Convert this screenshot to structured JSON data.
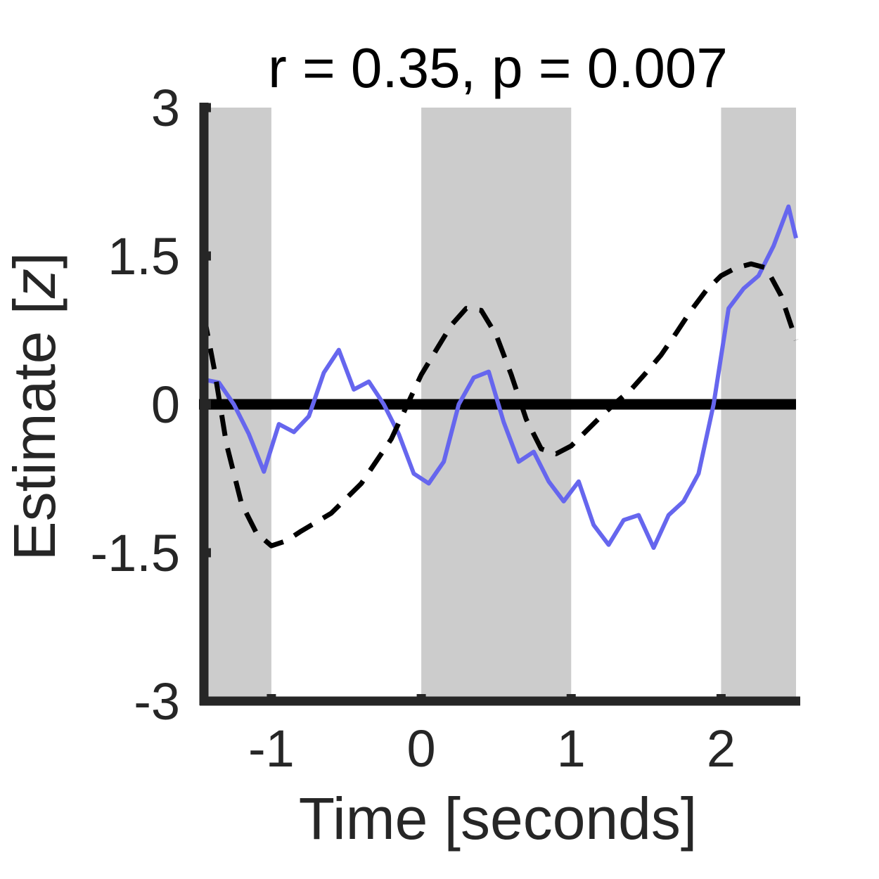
{
  "chart_data": {
    "type": "line",
    "title": "r = 0.35, p = 0.007",
    "xlabel": "Time [seconds]",
    "ylabel_prefix": "Estimate [",
    "ylabel_var": "z",
    "ylabel_suffix": "]",
    "xlim": [
      -1.45,
      2.5
    ],
    "ylim": [
      -3,
      3
    ],
    "xticks": [
      -1,
      0,
      1,
      2
    ],
    "xtick_labels": [
      "-1",
      "0",
      "1",
      "2"
    ],
    "yticks": [
      -3,
      -1.5,
      0,
      1.5,
      3
    ],
    "ytick_labels": [
      "-3",
      "-1.5",
      "0",
      "1.5",
      "3"
    ],
    "shaded_regions": [
      [
        -1.45,
        -1.0
      ],
      [
        0.0,
        1.0
      ],
      [
        2.0,
        2.5
      ]
    ],
    "shade_color": "#cccccc",
    "zero_line": {
      "y": 0,
      "color": "#000000"
    },
    "series": [
      {
        "style": "solid",
        "color": "#6666ee",
        "x": [
          -1.45,
          -1.35,
          -1.25,
          -1.15,
          -1.05,
          -0.95,
          -0.85,
          -0.75,
          -0.65,
          -0.55,
          -0.45,
          -0.35,
          -0.25,
          -0.15,
          -0.05,
          0.05,
          0.15,
          0.25,
          0.35,
          0.45,
          0.55,
          0.65,
          0.75,
          0.85,
          0.95,
          1.05,
          1.15,
          1.25,
          1.35,
          1.45,
          1.55,
          1.65,
          1.75,
          1.85,
          1.95,
          2.05,
          2.15,
          2.25,
          2.35,
          2.45,
          2.5
        ],
        "y": [
          0.25,
          0.22,
          0.0,
          -0.3,
          -0.68,
          -0.2,
          -0.28,
          -0.12,
          0.32,
          0.55,
          0.15,
          0.23,
          0.0,
          -0.3,
          -0.7,
          -0.8,
          -0.58,
          0.0,
          0.27,
          0.33,
          -0.18,
          -0.58,
          -0.48,
          -0.78,
          -0.98,
          -0.78,
          -1.22,
          -1.42,
          -1.17,
          -1.12,
          -1.45,
          -1.12,
          -0.98,
          -0.7,
          0.0,
          0.97,
          1.17,
          1.3,
          1.6,
          2.0,
          1.68
        ]
      },
      {
        "style": "dashed",
        "color": "#000000",
        "x": [
          -1.45,
          -1.38,
          -1.3,
          -1.2,
          -1.1,
          -1.0,
          -0.9,
          -0.8,
          -0.6,
          -0.4,
          -0.2,
          0.0,
          0.1,
          0.2,
          0.3,
          0.4,
          0.5,
          0.6,
          0.7,
          0.8,
          0.9,
          1.0,
          1.1,
          1.2,
          1.3,
          1.4,
          1.5,
          1.6,
          1.7,
          1.8,
          1.9,
          2.0,
          2.1,
          2.2,
          2.3,
          2.4,
          2.5
        ],
        "y": [
          0.9,
          0.35,
          -0.4,
          -1.0,
          -1.3,
          -1.43,
          -1.38,
          -1.28,
          -1.1,
          -0.8,
          -0.35,
          0.3,
          0.55,
          0.8,
          0.97,
          0.95,
          0.7,
          0.3,
          -0.15,
          -0.45,
          -0.5,
          -0.42,
          -0.27,
          -0.12,
          0.02,
          0.15,
          0.32,
          0.5,
          0.72,
          0.95,
          1.15,
          1.3,
          1.38,
          1.42,
          1.38,
          1.1,
          0.65
        ]
      }
    ]
  }
}
